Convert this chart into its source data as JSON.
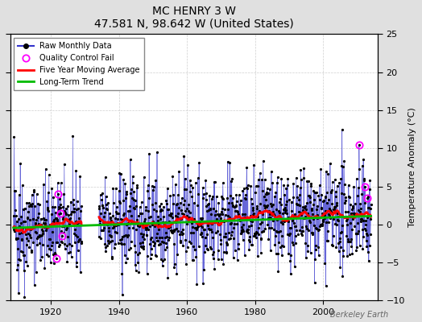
{
  "title": "MC HENRY 3 W",
  "subtitle": "47.581 N, 98.642 W (United States)",
  "ylabel": "Temperature Anomaly (°C)",
  "watermark": "Berkeley Earth",
  "ylim": [
    -10,
    25
  ],
  "yticks": [
    -10,
    -5,
    0,
    5,
    10,
    15,
    20,
    25
  ],
  "xlim": [
    1908,
    2016
  ],
  "xticks": [
    1920,
    1940,
    1960,
    1980,
    2000
  ],
  "bg_color": "#e0e0e0",
  "plot_bg_color": "#ffffff",
  "raw_line_color": "#3333cc",
  "raw_dot_color": "#000000",
  "ma_color": "#ff0000",
  "trend_color": "#00bb00",
  "qc_color": "#ff00ff",
  "seed": 42,
  "start_year": 1909,
  "end_year": 2014,
  "gap_start": 1929,
  "gap_end": 1934
}
